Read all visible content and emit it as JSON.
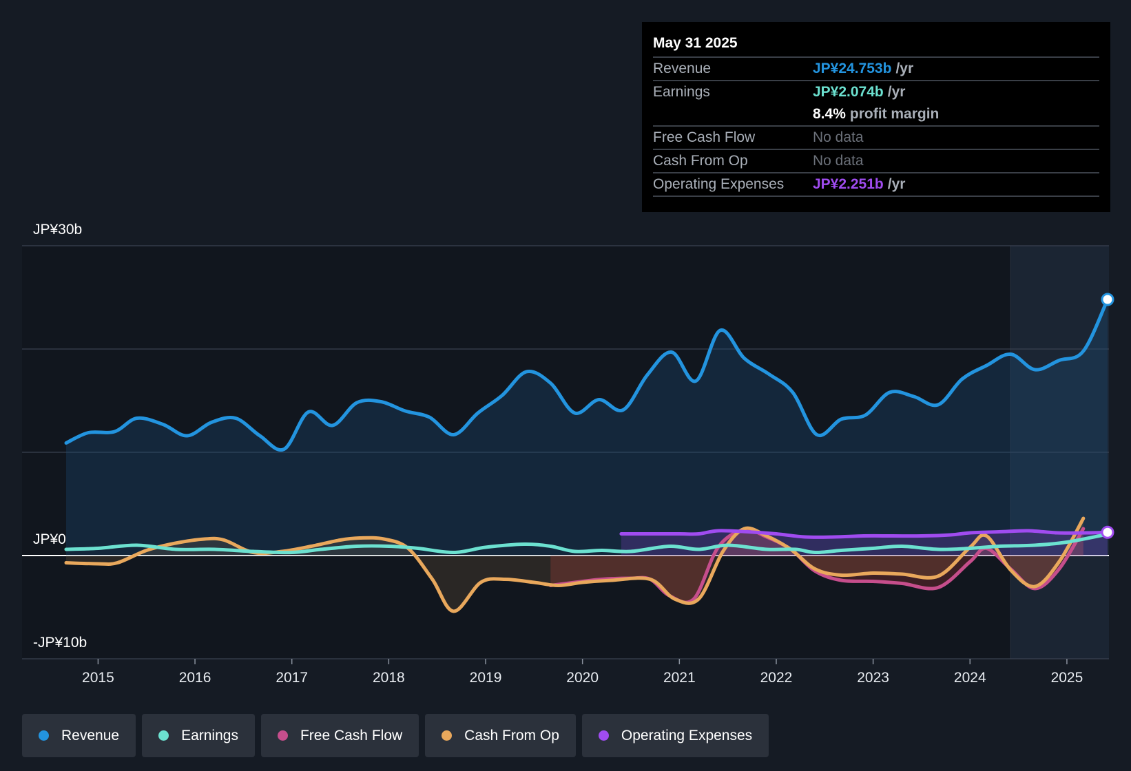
{
  "colors": {
    "revenue": "#2394df",
    "earnings": "#6ce1d0",
    "fcf": "#c64e8c",
    "cfo": "#e9a85c",
    "opex": "#a04cf0"
  },
  "tooltip": {
    "date": "May 31 2025",
    "revenue_label": "Revenue",
    "revenue_value": "JP¥24.753b",
    "revenue_unit": "/yr",
    "earnings_label": "Earnings",
    "earnings_value": "JP¥2.074b",
    "earnings_unit": "/yr",
    "margin_value": "8.4%",
    "margin_label": "profit margin",
    "fcf_label": "Free Cash Flow",
    "fcf_value": "No data",
    "cfo_label": "Cash From Op",
    "cfo_value": "No data",
    "opex_label": "Operating Expenses",
    "opex_value": "JP¥2.251b",
    "opex_unit": "/yr"
  },
  "legend": [
    {
      "label": "Revenue",
      "color_key": "revenue"
    },
    {
      "label": "Earnings",
      "color_key": "earnings"
    },
    {
      "label": "Free Cash Flow",
      "color_key": "fcf"
    },
    {
      "label": "Cash From Op",
      "color_key": "cfo"
    },
    {
      "label": "Operating Expenses",
      "color_key": "opex"
    }
  ],
  "chart_data": {
    "type": "line",
    "title": "",
    "xlabel": "",
    "ylabel": "",
    "ylim": [
      -10,
      30
    ],
    "xlim": [
      2014.67,
      2025.42
    ],
    "y_tick_labels": [
      {
        "value": 30,
        "label": "JP¥30b"
      },
      {
        "value": 0,
        "label": "JP¥0"
      },
      {
        "value": -10,
        "label": "-JP¥10b"
      }
    ],
    "gridlines": [
      30,
      20,
      10,
      0,
      -10
    ],
    "x_ticks": [
      {
        "value": 2015,
        "label": "2015"
      },
      {
        "value": 2016,
        "label": "2016"
      },
      {
        "value": 2017,
        "label": "2017"
      },
      {
        "value": 2018,
        "label": "2018"
      },
      {
        "value": 2019,
        "label": "2019"
      },
      {
        "value": 2020,
        "label": "2020"
      },
      {
        "value": 2021,
        "label": "2021"
      },
      {
        "value": 2022,
        "label": "2022"
      },
      {
        "value": 2023,
        "label": "2023"
      },
      {
        "value": 2024,
        "label": "2024"
      },
      {
        "value": 2025,
        "label": "2025"
      }
    ],
    "forecast_shade_start": 2024.42,
    "series": [
      {
        "name": "Revenue",
        "key": "revenue",
        "fill": true,
        "x": [
          2014.67,
          2014.9,
          2015.17,
          2015.4,
          2015.67,
          2015.92,
          2016.17,
          2016.42,
          2016.67,
          2016.92,
          2017.17,
          2017.42,
          2017.67,
          2017.92,
          2018.17,
          2018.42,
          2018.67,
          2018.92,
          2019.17,
          2019.42,
          2019.67,
          2019.92,
          2020.17,
          2020.42,
          2020.67,
          2020.92,
          2021.17,
          2021.42,
          2021.67,
          2021.92,
          2022.17,
          2022.42,
          2022.67,
          2022.92,
          2023.17,
          2023.42,
          2023.67,
          2023.92,
          2024.17,
          2024.42,
          2024.67,
          2024.92,
          2025.17,
          2025.42
        ],
        "y": [
          10.9,
          11.9,
          12.0,
          13.3,
          12.7,
          11.6,
          12.9,
          13.3,
          11.6,
          10.3,
          13.9,
          12.6,
          14.8,
          14.9,
          14.0,
          13.4,
          11.7,
          13.8,
          15.5,
          17.8,
          16.7,
          13.8,
          15.1,
          14.1,
          17.5,
          19.7,
          16.9,
          21.8,
          19.1,
          17.6,
          15.8,
          11.7,
          13.2,
          13.6,
          15.8,
          15.4,
          14.6,
          17.1,
          18.4,
          19.5,
          18.0,
          18.9,
          19.8,
          24.8
        ]
      },
      {
        "name": "Earnings",
        "key": "earnings",
        "fill": false,
        "x": [
          2014.67,
          2015.0,
          2015.4,
          2015.8,
          2016.2,
          2016.6,
          2017.0,
          2017.3,
          2017.67,
          2018.0,
          2018.3,
          2018.67,
          2019.0,
          2019.4,
          2019.67,
          2019.92,
          2020.2,
          2020.5,
          2020.9,
          2021.2,
          2021.5,
          2021.9,
          2022.2,
          2022.4,
          2022.67,
          2023.0,
          2023.3,
          2023.67,
          2024.0,
          2024.3,
          2024.67,
          2025.0,
          2025.42
        ],
        "y": [
          0.6,
          0.7,
          1.0,
          0.6,
          0.6,
          0.4,
          0.3,
          0.6,
          0.9,
          0.9,
          0.7,
          0.3,
          0.8,
          1.1,
          0.9,
          0.4,
          0.5,
          0.4,
          0.9,
          0.6,
          1.0,
          0.6,
          0.6,
          0.3,
          0.5,
          0.7,
          0.9,
          0.6,
          0.7,
          0.9,
          1.0,
          1.3,
          2.07
        ]
      },
      {
        "name": "Free Cash Flow",
        "key": "fcf",
        "fill": true,
        "x": [
          2019.67,
          2019.92,
          2020.2,
          2020.5,
          2020.7,
          2020.9,
          2021.15,
          2021.4,
          2021.67,
          2021.9,
          2022.15,
          2022.4,
          2022.67,
          2023.0,
          2023.3,
          2023.67,
          2024.0,
          2024.17,
          2024.42,
          2024.67,
          2024.92,
          2025.17
        ],
        "y": [
          -2.9,
          -2.6,
          -2.3,
          -2.2,
          -2.3,
          -3.9,
          -4.2,
          0.8,
          2.5,
          1.8,
          0.6,
          -1.5,
          -2.4,
          -2.5,
          -2.7,
          -3.1,
          -0.6,
          0.7,
          -1.3,
          -3.2,
          -1.3,
          2.6
        ]
      },
      {
        "name": "Cash From Op",
        "key": "cfo",
        "fill": true,
        "x": [
          2014.67,
          2015.0,
          2015.2,
          2015.5,
          2015.8,
          2016.1,
          2016.3,
          2016.6,
          2016.9,
          2017.2,
          2017.5,
          2017.7,
          2017.95,
          2018.2,
          2018.45,
          2018.67,
          2018.95,
          2019.2,
          2019.5,
          2019.75,
          2020.0,
          2020.3,
          2020.7,
          2020.95,
          2021.2,
          2021.45,
          2021.67,
          2021.9,
          2022.15,
          2022.4,
          2022.67,
          2023.0,
          2023.3,
          2023.67,
          2024.0,
          2024.17,
          2024.42,
          2024.67,
          2024.92,
          2025.17
        ],
        "y": [
          -0.7,
          -0.8,
          -0.7,
          0.5,
          1.2,
          1.6,
          1.5,
          0.3,
          0.4,
          0.9,
          1.5,
          1.7,
          1.6,
          0.7,
          -2.3,
          -5.4,
          -2.6,
          -2.3,
          -2.6,
          -2.9,
          -2.6,
          -2.4,
          -2.3,
          -4.2,
          -4.2,
          0.4,
          2.6,
          1.9,
          0.6,
          -1.3,
          -1.9,
          -1.7,
          -1.8,
          -2.0,
          0.8,
          1.9,
          -1.4,
          -3.0,
          -0.6,
          3.6
        ]
      },
      {
        "name": "Operating Expenses",
        "key": "opex",
        "fill": true,
        "x": [
          2020.4,
          2020.7,
          2021.0,
          2021.2,
          2021.4,
          2021.7,
          2022.0,
          2022.3,
          2022.6,
          2022.9,
          2023.2,
          2023.5,
          2023.8,
          2024.0,
          2024.3,
          2024.6,
          2024.9,
          2025.2,
          2025.42
        ],
        "y": [
          2.1,
          2.1,
          2.1,
          2.1,
          2.4,
          2.3,
          2.1,
          1.8,
          1.8,
          1.9,
          1.9,
          1.9,
          2.0,
          2.2,
          2.3,
          2.4,
          2.2,
          2.2,
          2.25
        ]
      }
    ]
  }
}
